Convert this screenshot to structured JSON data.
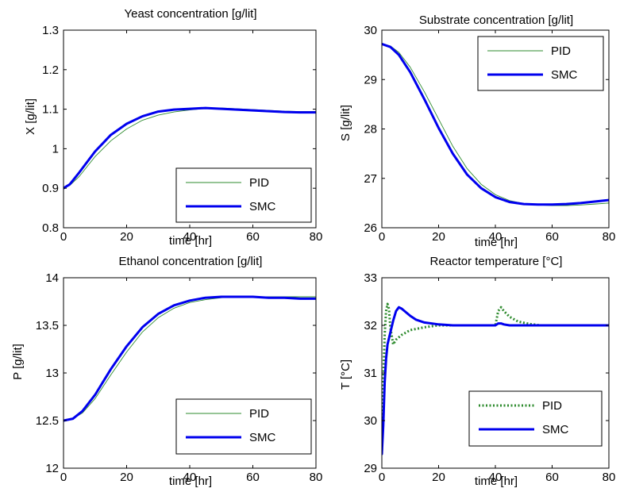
{
  "colors": {
    "pid": "#2e8b2e",
    "smc": "#0000ee",
    "axis": "#000000",
    "background": "#ffffff"
  },
  "chart_data": [
    {
      "type": "line",
      "title": "Yeast concentration [g/lit]",
      "xlabel": "time [hr]",
      "ylabel": "X [g/lit]",
      "xlim": [
        0,
        80
      ],
      "ylim": [
        0.8,
        1.3
      ],
      "xticks": [
        0,
        20,
        40,
        60,
        80
      ],
      "yticks": [
        0.8,
        0.9,
        1,
        1.1,
        1.2,
        1.3
      ],
      "xtick_labels": [
        "0",
        "20",
        "40",
        "60",
        "80"
      ],
      "ytick_labels": [
        "0.8",
        "0.9",
        "1",
        "1.1",
        "1.2",
        "1.3"
      ],
      "legend": {
        "placement": "bottom-right",
        "entries": [
          "PID",
          "SMC"
        ]
      },
      "series": [
        {
          "name": "PID",
          "style": "thin-solid",
          "x": [
            0,
            2,
            5,
            10,
            15,
            20,
            25,
            30,
            35,
            40,
            45,
            50,
            55,
            60,
            65,
            70,
            75,
            80
          ],
          "y": [
            0.9,
            0.907,
            0.93,
            0.98,
            1.02,
            1.05,
            1.072,
            1.085,
            1.093,
            1.098,
            1.102,
            1.103,
            1.101,
            1.099,
            1.097,
            1.095,
            1.094,
            1.094
          ]
        },
        {
          "name": "SMC",
          "style": "thick-solid",
          "x": [
            0,
            2,
            5,
            10,
            15,
            20,
            25,
            30,
            35,
            40,
            45,
            50,
            55,
            60,
            65,
            70,
            75,
            80
          ],
          "y": [
            0.9,
            0.91,
            0.94,
            0.993,
            1.035,
            1.063,
            1.082,
            1.094,
            1.099,
            1.101,
            1.103,
            1.101,
            1.099,
            1.097,
            1.095,
            1.093,
            1.092,
            1.092
          ]
        }
      ]
    },
    {
      "type": "line",
      "title": "Substrate concentration [g/lit]",
      "xlabel": "time [hr]",
      "ylabel": "S [g/lit]",
      "xlim": [
        0,
        80
      ],
      "ylim": [
        26,
        30
      ],
      "xticks": [
        0,
        20,
        40,
        60,
        80
      ],
      "yticks": [
        26,
        27,
        28,
        29,
        30
      ],
      "xtick_labels": [
        "0",
        "20",
        "40",
        "60",
        "80"
      ],
      "ytick_labels": [
        "26",
        "27",
        "28",
        "29",
        "30"
      ],
      "legend": {
        "placement": "top-right",
        "entries": [
          "PID",
          "SMC"
        ]
      },
      "series": [
        {
          "name": "PID",
          "style": "thin-solid",
          "x": [
            0,
            3,
            6,
            10,
            15,
            20,
            25,
            30,
            35,
            40,
            45,
            50,
            55,
            60,
            65,
            70,
            75,
            80
          ],
          "y": [
            29.72,
            29.68,
            29.55,
            29.25,
            28.75,
            28.2,
            27.65,
            27.2,
            26.88,
            26.67,
            26.55,
            26.49,
            26.46,
            26.45,
            26.45,
            26.46,
            26.48,
            26.5
          ]
        },
        {
          "name": "SMC",
          "style": "thick-solid",
          "x": [
            0,
            3,
            6,
            10,
            15,
            20,
            25,
            30,
            35,
            40,
            45,
            50,
            55,
            60,
            65,
            70,
            75,
            80
          ],
          "y": [
            29.72,
            29.66,
            29.5,
            29.15,
            28.6,
            28.02,
            27.5,
            27.08,
            26.8,
            26.62,
            26.52,
            26.48,
            26.47,
            26.47,
            26.48,
            26.5,
            26.53,
            26.56
          ]
        }
      ]
    },
    {
      "type": "line",
      "title": "Ethanol concentration [g/lit]",
      "xlabel": "time [hr]",
      "ylabel": "P [g/lit]",
      "xlim": [
        0,
        80
      ],
      "ylim": [
        12,
        14
      ],
      "xticks": [
        0,
        20,
        40,
        60,
        80
      ],
      "yticks": [
        12,
        12.5,
        13,
        13.5,
        14
      ],
      "xtick_labels": [
        "0",
        "20",
        "40",
        "60",
        "80"
      ],
      "ytick_labels": [
        "12",
        "12.5",
        "13",
        "13.5",
        "14"
      ],
      "legend": {
        "placement": "bottom-right",
        "entries": [
          "PID",
          "SMC"
        ]
      },
      "series": [
        {
          "name": "PID",
          "style": "thin-solid",
          "x": [
            0,
            3,
            6,
            10,
            15,
            20,
            25,
            30,
            35,
            40,
            45,
            50,
            55,
            60,
            65,
            70,
            75,
            80
          ],
          "y": [
            12.5,
            12.52,
            12.58,
            12.73,
            12.98,
            13.22,
            13.43,
            13.58,
            13.68,
            13.74,
            13.77,
            13.79,
            13.8,
            13.8,
            13.8,
            13.8,
            13.8,
            13.8
          ]
        },
        {
          "name": "SMC",
          "style": "thick-solid",
          "x": [
            0,
            3,
            6,
            10,
            15,
            20,
            25,
            30,
            35,
            40,
            45,
            50,
            55,
            60,
            65,
            70,
            75,
            80
          ],
          "y": [
            12.5,
            12.52,
            12.6,
            12.77,
            13.04,
            13.28,
            13.48,
            13.62,
            13.71,
            13.76,
            13.79,
            13.8,
            13.8,
            13.8,
            13.79,
            13.79,
            13.78,
            13.78
          ]
        }
      ]
    },
    {
      "type": "line",
      "title": "Reactor temperature [°C]",
      "xlabel": "time [hr]",
      "ylabel": "T [°C]",
      "xlim": [
        0,
        80
      ],
      "ylim": [
        29,
        33
      ],
      "xticks": [
        0,
        20,
        40,
        60,
        80
      ],
      "yticks": [
        29,
        30,
        31,
        32,
        33
      ],
      "xtick_labels": [
        "0",
        "20",
        "40",
        "60",
        "80"
      ],
      "ytick_labels": [
        "29",
        "30",
        "31",
        "32",
        "33"
      ],
      "legend": {
        "placement": "bottom-right",
        "entries": [
          "PID",
          "SMC"
        ]
      },
      "series": [
        {
          "name": "PID",
          "style": "dotted",
          "x": [
            0,
            0.5,
            1,
            1.5,
            2,
            2.5,
            3,
            4,
            5,
            7,
            10,
            15,
            20,
            25,
            30,
            35,
            40,
            40.5,
            41,
            42,
            43,
            45,
            48,
            52,
            56,
            60,
            65,
            70,
            75,
            80
          ],
          "y": [
            29.3,
            30.8,
            31.8,
            32.3,
            32.45,
            32.35,
            31.95,
            31.6,
            31.7,
            31.8,
            31.9,
            31.96,
            32.0,
            32.0,
            32.0,
            32.0,
            32.0,
            32.15,
            32.3,
            32.38,
            32.3,
            32.18,
            32.08,
            32.03,
            32.0,
            32.0,
            32.0,
            32.0,
            32.0,
            32.0
          ]
        },
        {
          "name": "SMC",
          "style": "thick-solid",
          "x": [
            0,
            0.5,
            1,
            1.5,
            2,
            3,
            4,
            5,
            6,
            7,
            8,
            10,
            12,
            15,
            20,
            25,
            30,
            35,
            40,
            41,
            42,
            43,
            45,
            50,
            55,
            60,
            65,
            70,
            75,
            80
          ],
          "y": [
            29.3,
            29.9,
            30.8,
            31.3,
            31.6,
            31.85,
            32.1,
            32.3,
            32.38,
            32.35,
            32.3,
            32.2,
            32.12,
            32.06,
            32.02,
            32.0,
            32.0,
            32.0,
            32.0,
            32.04,
            32.04,
            32.02,
            32.0,
            32.0,
            32.0,
            32.0,
            32.0,
            32.0,
            32.0,
            32.0
          ]
        }
      ]
    }
  ]
}
